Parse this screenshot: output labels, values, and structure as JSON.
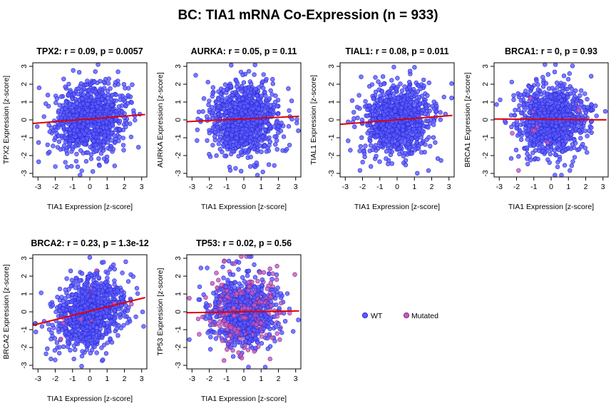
{
  "figure": {
    "title": "BC: TIA1 mRNA Co-Expression (n = 933)"
  },
  "colors": {
    "wt_fill": "#5b5bff",
    "wt_stroke": "#2a2ad0",
    "mutated_fill": "#c45bc0",
    "mutated_stroke": "#8a2a86",
    "regression_line": "#e00000"
  },
  "legend": {
    "items": [
      {
        "label": "WT",
        "color_key": "wt_fill"
      },
      {
        "label": "Mutated",
        "color_key": "mutated_fill"
      }
    ]
  },
  "chart_data": [
    {
      "type": "scatter",
      "gene": "TPX2",
      "title": "TPX2: r = 0.09, p = 0.0057",
      "xlabel": "TIA1 Expression [z-score]",
      "ylabel": "TPX2 Expression [z-score]",
      "xlim": [
        -3.3,
        3.3
      ],
      "ylim": [
        -3.2,
        3.2
      ],
      "xticks": [
        -3,
        -2,
        -1,
        0,
        1,
        2,
        3
      ],
      "yticks": [
        -3,
        -2,
        -1,
        0,
        1,
        2,
        3
      ],
      "n": 933,
      "r": 0.09,
      "p": "0.0057",
      "regression": {
        "x": [
          -3.3,
          3.2
        ],
        "y": [
          -0.2,
          0.3
        ]
      },
      "mutated_fraction": 0
    },
    {
      "type": "scatter",
      "gene": "AURKA",
      "title": "AURKA: r = 0.05, p = 0.11",
      "xlabel": "TIA1 Expression [z-score]",
      "ylabel": "AURKA Expression [z-score]",
      "xlim": [
        -3.3,
        3.3
      ],
      "ylim": [
        -3.2,
        3.2
      ],
      "xticks": [
        -3,
        -2,
        -1,
        0,
        1,
        2,
        3
      ],
      "yticks": [
        -3,
        -2,
        -1,
        0,
        1,
        2,
        3
      ],
      "n": 933,
      "r": 0.05,
      "p": "0.11",
      "regression": {
        "x": [
          -3.3,
          3.2
        ],
        "y": [
          -0.1,
          0.2
        ]
      },
      "mutated_fraction": 0
    },
    {
      "type": "scatter",
      "gene": "TIAL1",
      "title": "TIAL1: r = 0.08, p = 0.011",
      "xlabel": "TIA1 Expression [z-score]",
      "ylabel": "TIAL1 Expression [z-score]",
      "xlim": [
        -3.3,
        3.3
      ],
      "ylim": [
        -3.2,
        3.2
      ],
      "xticks": [
        -3,
        -2,
        -1,
        0,
        1,
        2,
        3
      ],
      "yticks": [
        -3,
        -2,
        -1,
        0,
        1,
        2,
        3
      ],
      "n": 933,
      "r": 0.08,
      "p": "0.011",
      "regression": {
        "x": [
          -3.3,
          3.2
        ],
        "y": [
          -0.25,
          0.25
        ]
      },
      "mutated_fraction": 0
    },
    {
      "type": "scatter",
      "gene": "BRCA1",
      "title": "BRCA1: r = 0, p = 0.93",
      "xlabel": "TIA1 Expression [z-score]",
      "ylabel": "BRCA1 Expression [z-score]",
      "xlim": [
        -3.3,
        3.3
      ],
      "ylim": [
        -3.2,
        3.2
      ],
      "xticks": [
        -3,
        -2,
        -1,
        0,
        1,
        2,
        3
      ],
      "yticks": [
        -3,
        -2,
        -1,
        0,
        1,
        2,
        3
      ],
      "n": 933,
      "r": 0,
      "p": "0.93",
      "regression": {
        "x": [
          -3.3,
          3.2
        ],
        "y": [
          0.05,
          0.0
        ]
      },
      "mutated_fraction": 0.03
    },
    {
      "type": "scatter",
      "gene": "BRCA2",
      "title": "BRCA2: r = 0.23, p = 1.3e-12",
      "xlabel": "TIA1 Expression [z-score]",
      "ylabel": "BRCA2 Expression [z-score]",
      "xlim": [
        -3.3,
        3.3
      ],
      "ylim": [
        -3.2,
        3.2
      ],
      "xticks": [
        -3,
        -2,
        -1,
        0,
        1,
        2,
        3
      ],
      "yticks": [
        -3,
        -2,
        -1,
        0,
        1,
        2,
        3
      ],
      "n": 933,
      "r": 0.23,
      "p": "1.3e-12",
      "regression": {
        "x": [
          -3.3,
          3.2
        ],
        "y": [
          -0.75,
          0.8
        ]
      },
      "mutated_fraction": 0.02
    },
    {
      "type": "scatter",
      "gene": "TP53",
      "title": "TP53: r = 0.02, p = 0.56",
      "xlabel": "TIA1 Expression [z-score]",
      "ylabel": "TP53 Expression [z-score]",
      "xlim": [
        -3.3,
        3.3
      ],
      "ylim": [
        -3.2,
        3.2
      ],
      "xticks": [
        -3,
        -2,
        -1,
        0,
        1,
        2,
        3
      ],
      "yticks": [
        -3,
        -2,
        -1,
        0,
        1,
        2,
        3
      ],
      "n": 933,
      "r": 0.02,
      "p": "0.56",
      "regression": {
        "x": [
          -3.3,
          3.2
        ],
        "y": [
          -0.05,
          0.05
        ]
      },
      "mutated_fraction": 0.33
    }
  ]
}
